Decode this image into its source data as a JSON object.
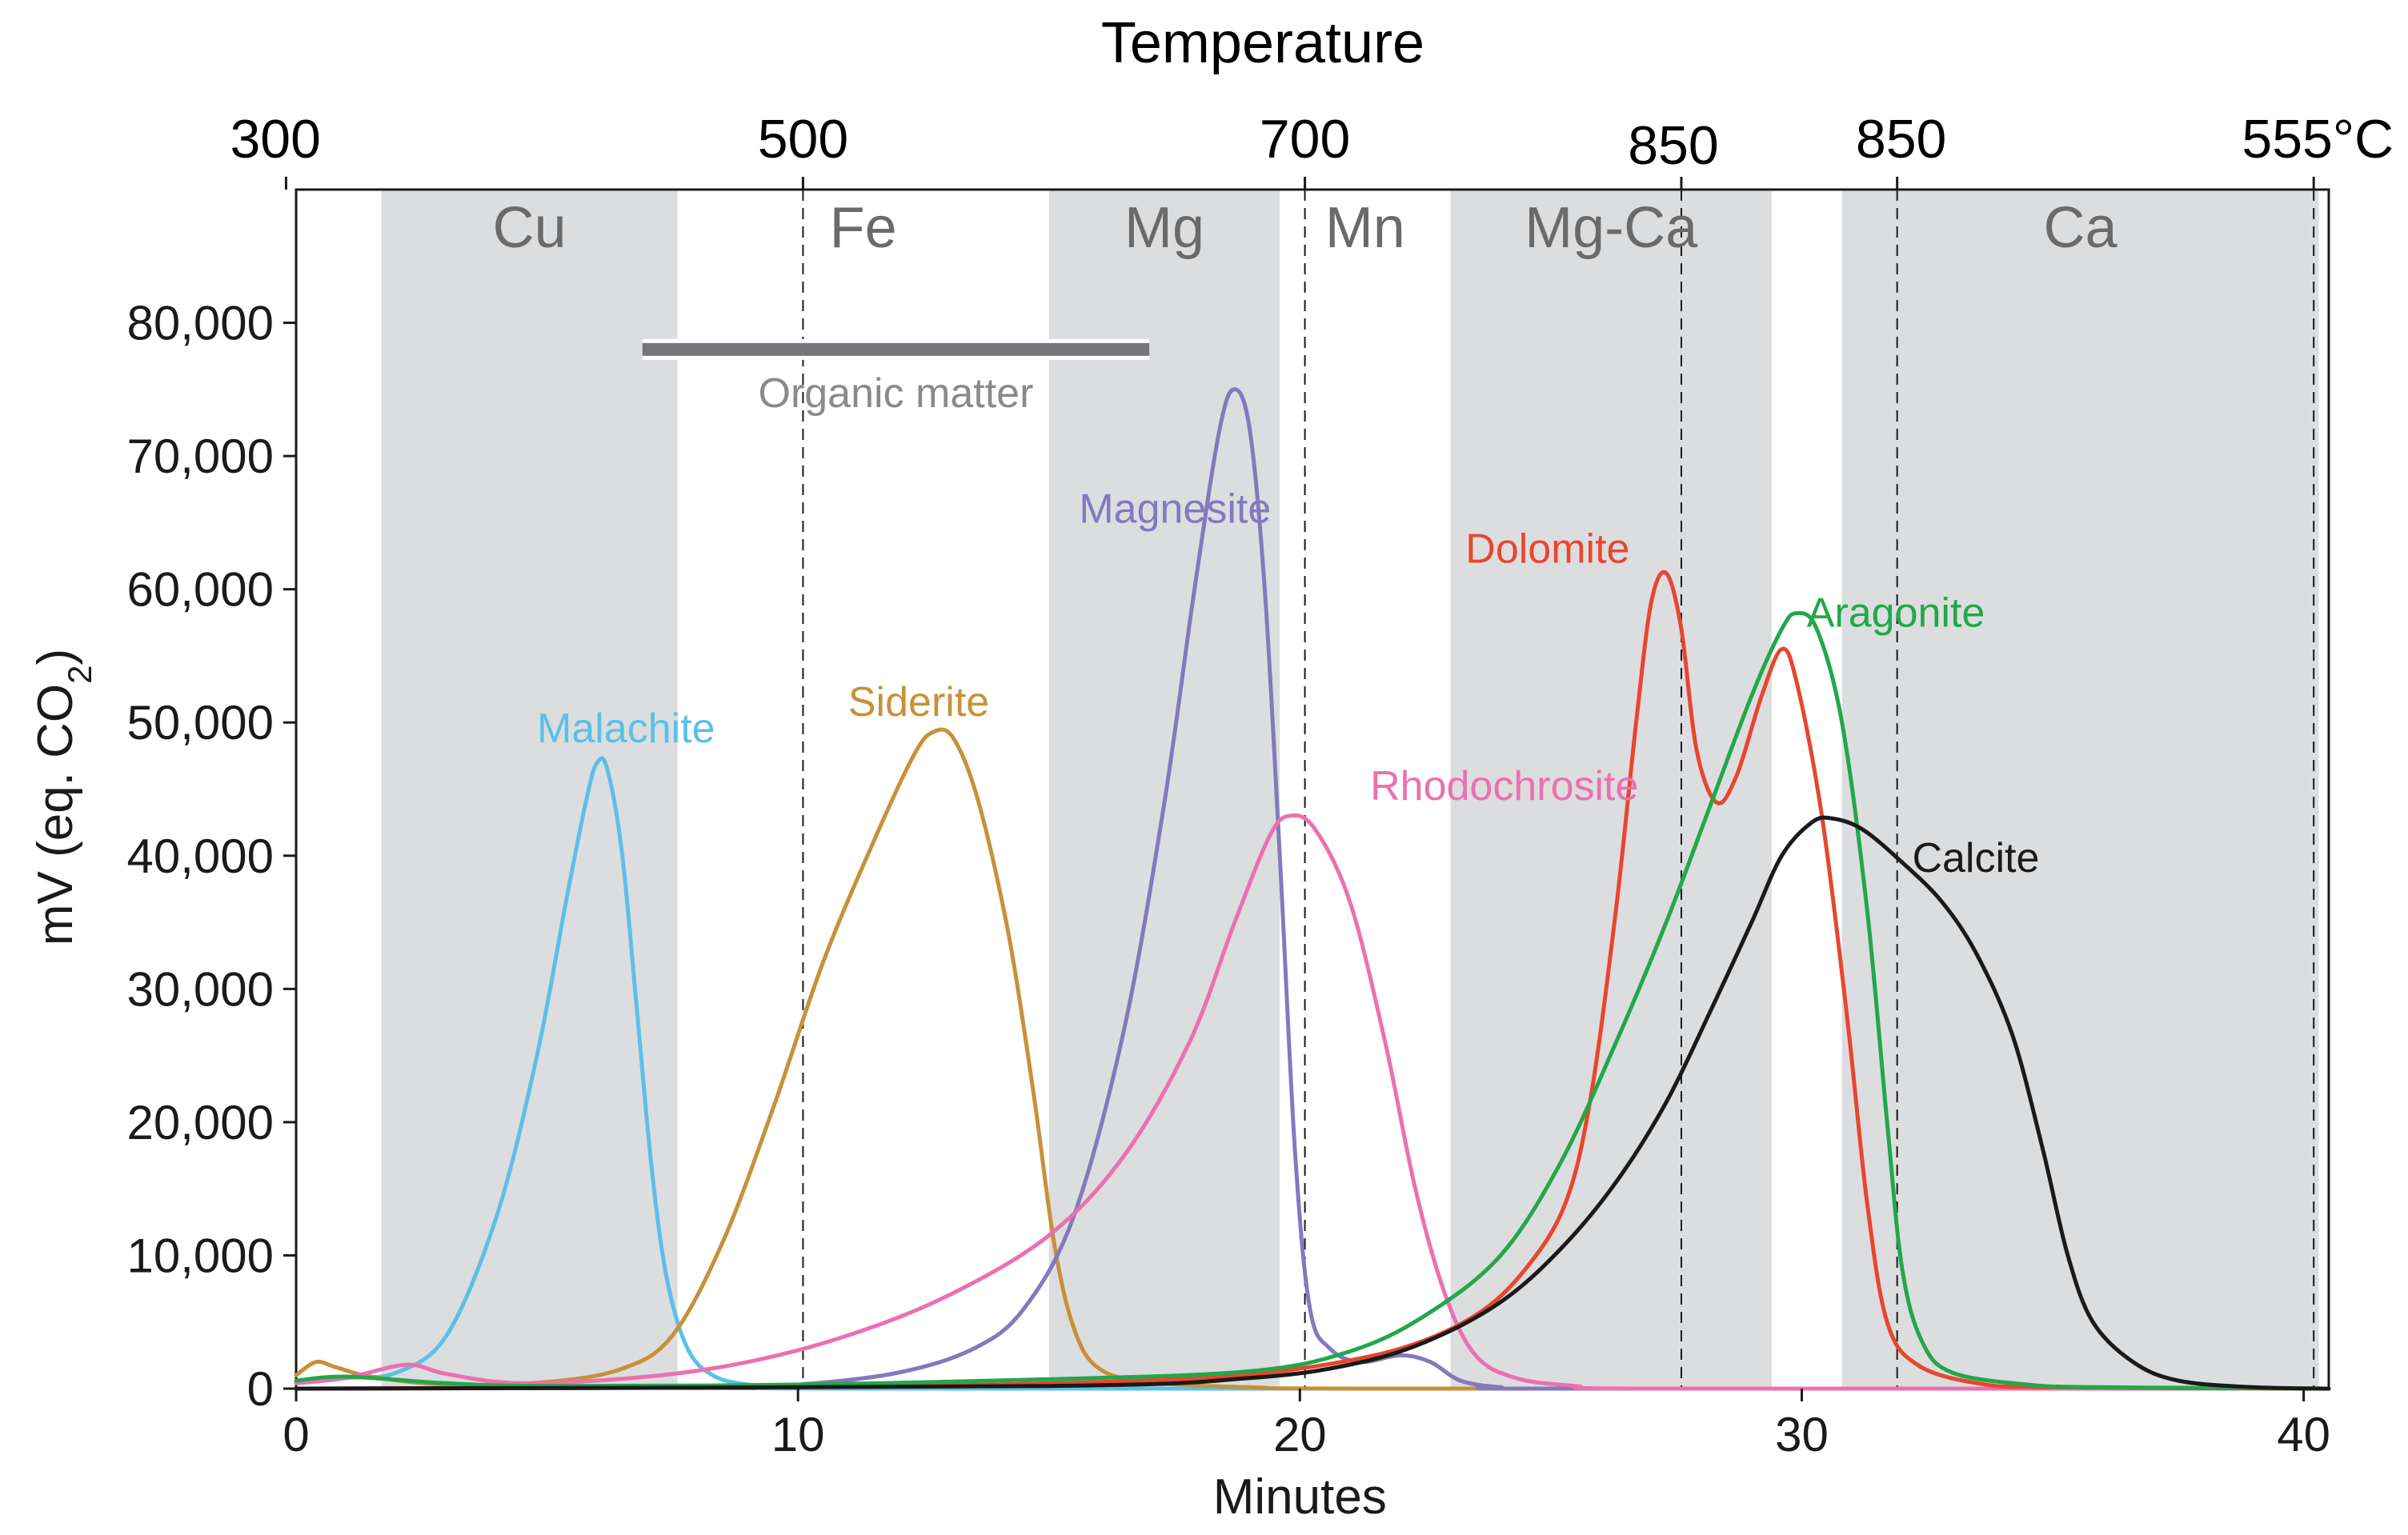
{
  "chart_data": {
    "type": "line",
    "title": "",
    "xlabel": "Minutes",
    "ylabel_main": "mV (eq. CO",
    "ylabel_sub": "2",
    "ylabel_close": ")",
    "xlim": [
      0,
      40.5
    ],
    "ylim": [
      0,
      90000
    ],
    "x_ticks": [
      0,
      10,
      20,
      30,
      40
    ],
    "x_tick_labels": [
      "0",
      "10",
      "20",
      "30",
      "40"
    ],
    "y_ticks": [
      0,
      10000,
      20000,
      30000,
      40000,
      50000,
      60000,
      70000,
      80000
    ],
    "y_tick_labels": [
      "0",
      "10,000",
      "20,000",
      "30,000",
      "40,000",
      "50,000",
      "60,000",
      "70,000",
      "80,000"
    ],
    "top_axis": {
      "title": "Temperature",
      "ticks": [
        {
          "label": "300",
          "minutes": -0.2,
          "dashed": false
        },
        {
          "label": "500",
          "minutes": 10.1,
          "dashed": true
        },
        {
          "label": "700",
          "minutes": 20.1,
          "dashed": true
        },
        {
          "label": "850",
          "minutes": 27.6,
          "dashed": true
        },
        {
          "label": "850",
          "minutes": 31.9,
          "dashed": true
        },
        {
          "label": "555°C",
          "minutes": 40.2,
          "dashed": true
        }
      ]
    },
    "element_bands": [
      {
        "label": "Cu",
        "start": 1.7,
        "end": 7.6,
        "shaded": true
      },
      {
        "label": "Fe",
        "start": 7.6,
        "end": 15.0,
        "shaded": false
      },
      {
        "label": "Mg",
        "start": 15.0,
        "end": 19.6,
        "shaded": true
      },
      {
        "label": "Mn",
        "start": 19.6,
        "end": 23.0,
        "shaded": false
      },
      {
        "label": "Mg-Ca",
        "start": 23.0,
        "end": 29.4,
        "shaded": true
      },
      {
        "label": "Ca",
        "start": 30.8,
        "end": 40.3,
        "shaded": true
      }
    ],
    "range_annotation": {
      "label": "Organic matter",
      "start": 6.9,
      "end": 17.0,
      "y": 78000
    },
    "series": [
      {
        "name": "Malachite",
        "color": "#5bc0e8",
        "label_x": 4.8,
        "label_y": 48500,
        "points": [
          [
            0,
            500
          ],
          [
            1,
            800
          ],
          [
            2,
            1200
          ],
          [
            3,
            4000
          ],
          [
            4,
            13000
          ],
          [
            4.8,
            25000
          ],
          [
            5.4,
            37000
          ],
          [
            5.8,
            44500
          ],
          [
            6.0,
            47000
          ],
          [
            6.2,
            46500
          ],
          [
            6.5,
            40000
          ],
          [
            6.8,
            28000
          ],
          [
            7.1,
            16000
          ],
          [
            7.4,
            8000
          ],
          [
            7.8,
            3000
          ],
          [
            8.3,
            1000
          ],
          [
            9,
            300
          ],
          [
            10,
            100
          ],
          [
            12,
            0
          ],
          [
            40.5,
            0
          ]
        ]
      },
      {
        "name": "Siderite",
        "color": "#c8903a",
        "label_x": 11.0,
        "label_y": 50500,
        "points": [
          [
            0,
            1000
          ],
          [
            0.4,
            2000
          ],
          [
            0.8,
            1600
          ],
          [
            1.5,
            900
          ],
          [
            3,
            300
          ],
          [
            5,
            500
          ],
          [
            6.5,
            1500
          ],
          [
            7.5,
            4000
          ],
          [
            8.5,
            11000
          ],
          [
            9.5,
            21000
          ],
          [
            10.5,
            32000
          ],
          [
            11.5,
            41000
          ],
          [
            12.3,
            47500
          ],
          [
            12.7,
            49300
          ],
          [
            13.1,
            48800
          ],
          [
            13.6,
            44000
          ],
          [
            14.2,
            34000
          ],
          [
            14.7,
            22000
          ],
          [
            15.1,
            11000
          ],
          [
            15.5,
            4500
          ],
          [
            16,
            1500
          ],
          [
            17,
            500
          ],
          [
            19,
            100
          ],
          [
            22,
            0
          ],
          [
            40.5,
            0
          ]
        ]
      },
      {
        "name": "Magnesite",
        "color": "#8379bd",
        "label_x": 15.6,
        "label_y": 65000,
        "points": [
          [
            0,
            0
          ],
          [
            8,
            100
          ],
          [
            10,
            300
          ],
          [
            12,
            1200
          ],
          [
            13.5,
            3000
          ],
          [
            14.5,
            6000
          ],
          [
            15.5,
            13000
          ],
          [
            16.5,
            27000
          ],
          [
            17.3,
            44000
          ],
          [
            17.9,
            60000
          ],
          [
            18.4,
            72000
          ],
          [
            18.7,
            75000
          ],
          [
            19.0,
            72000
          ],
          [
            19.3,
            60000
          ],
          [
            19.6,
            40000
          ],
          [
            19.9,
            18000
          ],
          [
            20.2,
            6000
          ],
          [
            20.6,
            3000
          ],
          [
            21.2,
            2000
          ],
          [
            22,
            2500
          ],
          [
            22.6,
            2000
          ],
          [
            23.2,
            600
          ],
          [
            24,
            100
          ],
          [
            25,
            0
          ],
          [
            40.5,
            0
          ]
        ]
      },
      {
        "name": "Rhodochrosite",
        "color": "#ec70b0",
        "label_x": 21.4,
        "label_y": 44200,
        "points": [
          [
            0,
            400
          ],
          [
            1,
            800
          ],
          [
            2.2,
            1800
          ],
          [
            3,
            1100
          ],
          [
            4.5,
            400
          ],
          [
            7,
            900
          ],
          [
            9,
            2000
          ],
          [
            11,
            4000
          ],
          [
            13,
            7000
          ],
          [
            15,
            11500
          ],
          [
            16.5,
            17500
          ],
          [
            17.8,
            26000
          ],
          [
            18.7,
            35000
          ],
          [
            19.4,
            41500
          ],
          [
            19.8,
            43000
          ],
          [
            20.3,
            42000
          ],
          [
            21.0,
            36500
          ],
          [
            21.7,
            26000
          ],
          [
            22.3,
            15000
          ],
          [
            22.9,
            7000
          ],
          [
            23.5,
            2500
          ],
          [
            24.3,
            800
          ],
          [
            25.5,
            200
          ],
          [
            27,
            0
          ],
          [
            40.5,
            0
          ]
        ]
      },
      {
        "name": "Dolomite",
        "color": "#e8462e",
        "label_x": 23.3,
        "label_y": 62000,
        "points": [
          [
            0,
            0
          ],
          [
            10,
            100
          ],
          [
            15,
            400
          ],
          [
            18,
            800
          ],
          [
            20,
            1500
          ],
          [
            22,
            3000
          ],
          [
            23.5,
            5500
          ],
          [
            24.5,
            9000
          ],
          [
            25.3,
            14000
          ],
          [
            25.8,
            22000
          ],
          [
            26.3,
            36000
          ],
          [
            26.7,
            50000
          ],
          [
            27.0,
            59000
          ],
          [
            27.3,
            61200
          ],
          [
            27.6,
            57000
          ],
          [
            27.9,
            48000
          ],
          [
            28.3,
            44000
          ],
          [
            28.7,
            46000
          ],
          [
            29.2,
            52000
          ],
          [
            29.6,
            55500
          ],
          [
            29.9,
            53000
          ],
          [
            30.4,
            43000
          ],
          [
            30.9,
            28000
          ],
          [
            31.3,
            14000
          ],
          [
            31.7,
            5000
          ],
          [
            32.3,
            1800
          ],
          [
            33.5,
            400
          ],
          [
            35,
            100
          ],
          [
            40.5,
            0
          ]
        ]
      },
      {
        "name": "Aragonite",
        "color": "#22a74a",
        "label_x": 30.1,
        "label_y": 57200,
        "points": [
          [
            0,
            600
          ],
          [
            1,
            900
          ],
          [
            3,
            400
          ],
          [
            5,
            200
          ],
          [
            10,
            300
          ],
          [
            15,
            700
          ],
          [
            19,
            1300
          ],
          [
            21,
            2800
          ],
          [
            22.5,
            5500
          ],
          [
            24,
            10000
          ],
          [
            25.2,
            17000
          ],
          [
            26.3,
            26000
          ],
          [
            27.3,
            35000
          ],
          [
            28.2,
            44000
          ],
          [
            29.0,
            52000
          ],
          [
            29.6,
            57000
          ],
          [
            29.9,
            58200
          ],
          [
            30.3,
            57000
          ],
          [
            30.8,
            50000
          ],
          [
            31.3,
            36000
          ],
          [
            31.7,
            20000
          ],
          [
            32.0,
            9000
          ],
          [
            32.4,
            3500
          ],
          [
            33,
            1200
          ],
          [
            34.5,
            300
          ],
          [
            36,
            100
          ],
          [
            40.5,
            0
          ]
        ]
      },
      {
        "name": "Calcite",
        "color": "#1a1a1a",
        "label_x": 32.2,
        "label_y": 38800,
        "points": [
          [
            0,
            0
          ],
          [
            15,
            200
          ],
          [
            19,
            800
          ],
          [
            21,
            1800
          ],
          [
            22.5,
            3500
          ],
          [
            24,
            6500
          ],
          [
            25.2,
            10500
          ],
          [
            26.3,
            15500
          ],
          [
            27.3,
            21500
          ],
          [
            28.2,
            28500
          ],
          [
            29.0,
            35000
          ],
          [
            29.6,
            40000
          ],
          [
            30.2,
            42500
          ],
          [
            30.6,
            42800
          ],
          [
            31.2,
            42000
          ],
          [
            32.0,
            39500
          ],
          [
            32.8,
            36500
          ],
          [
            33.5,
            32500
          ],
          [
            34.2,
            26500
          ],
          [
            34.8,
            18000
          ],
          [
            35.3,
            10000
          ],
          [
            35.8,
            5000
          ],
          [
            36.6,
            2000
          ],
          [
            37.5,
            600
          ],
          [
            39,
            100
          ],
          [
            40.5,
            0
          ]
        ]
      }
    ]
  }
}
